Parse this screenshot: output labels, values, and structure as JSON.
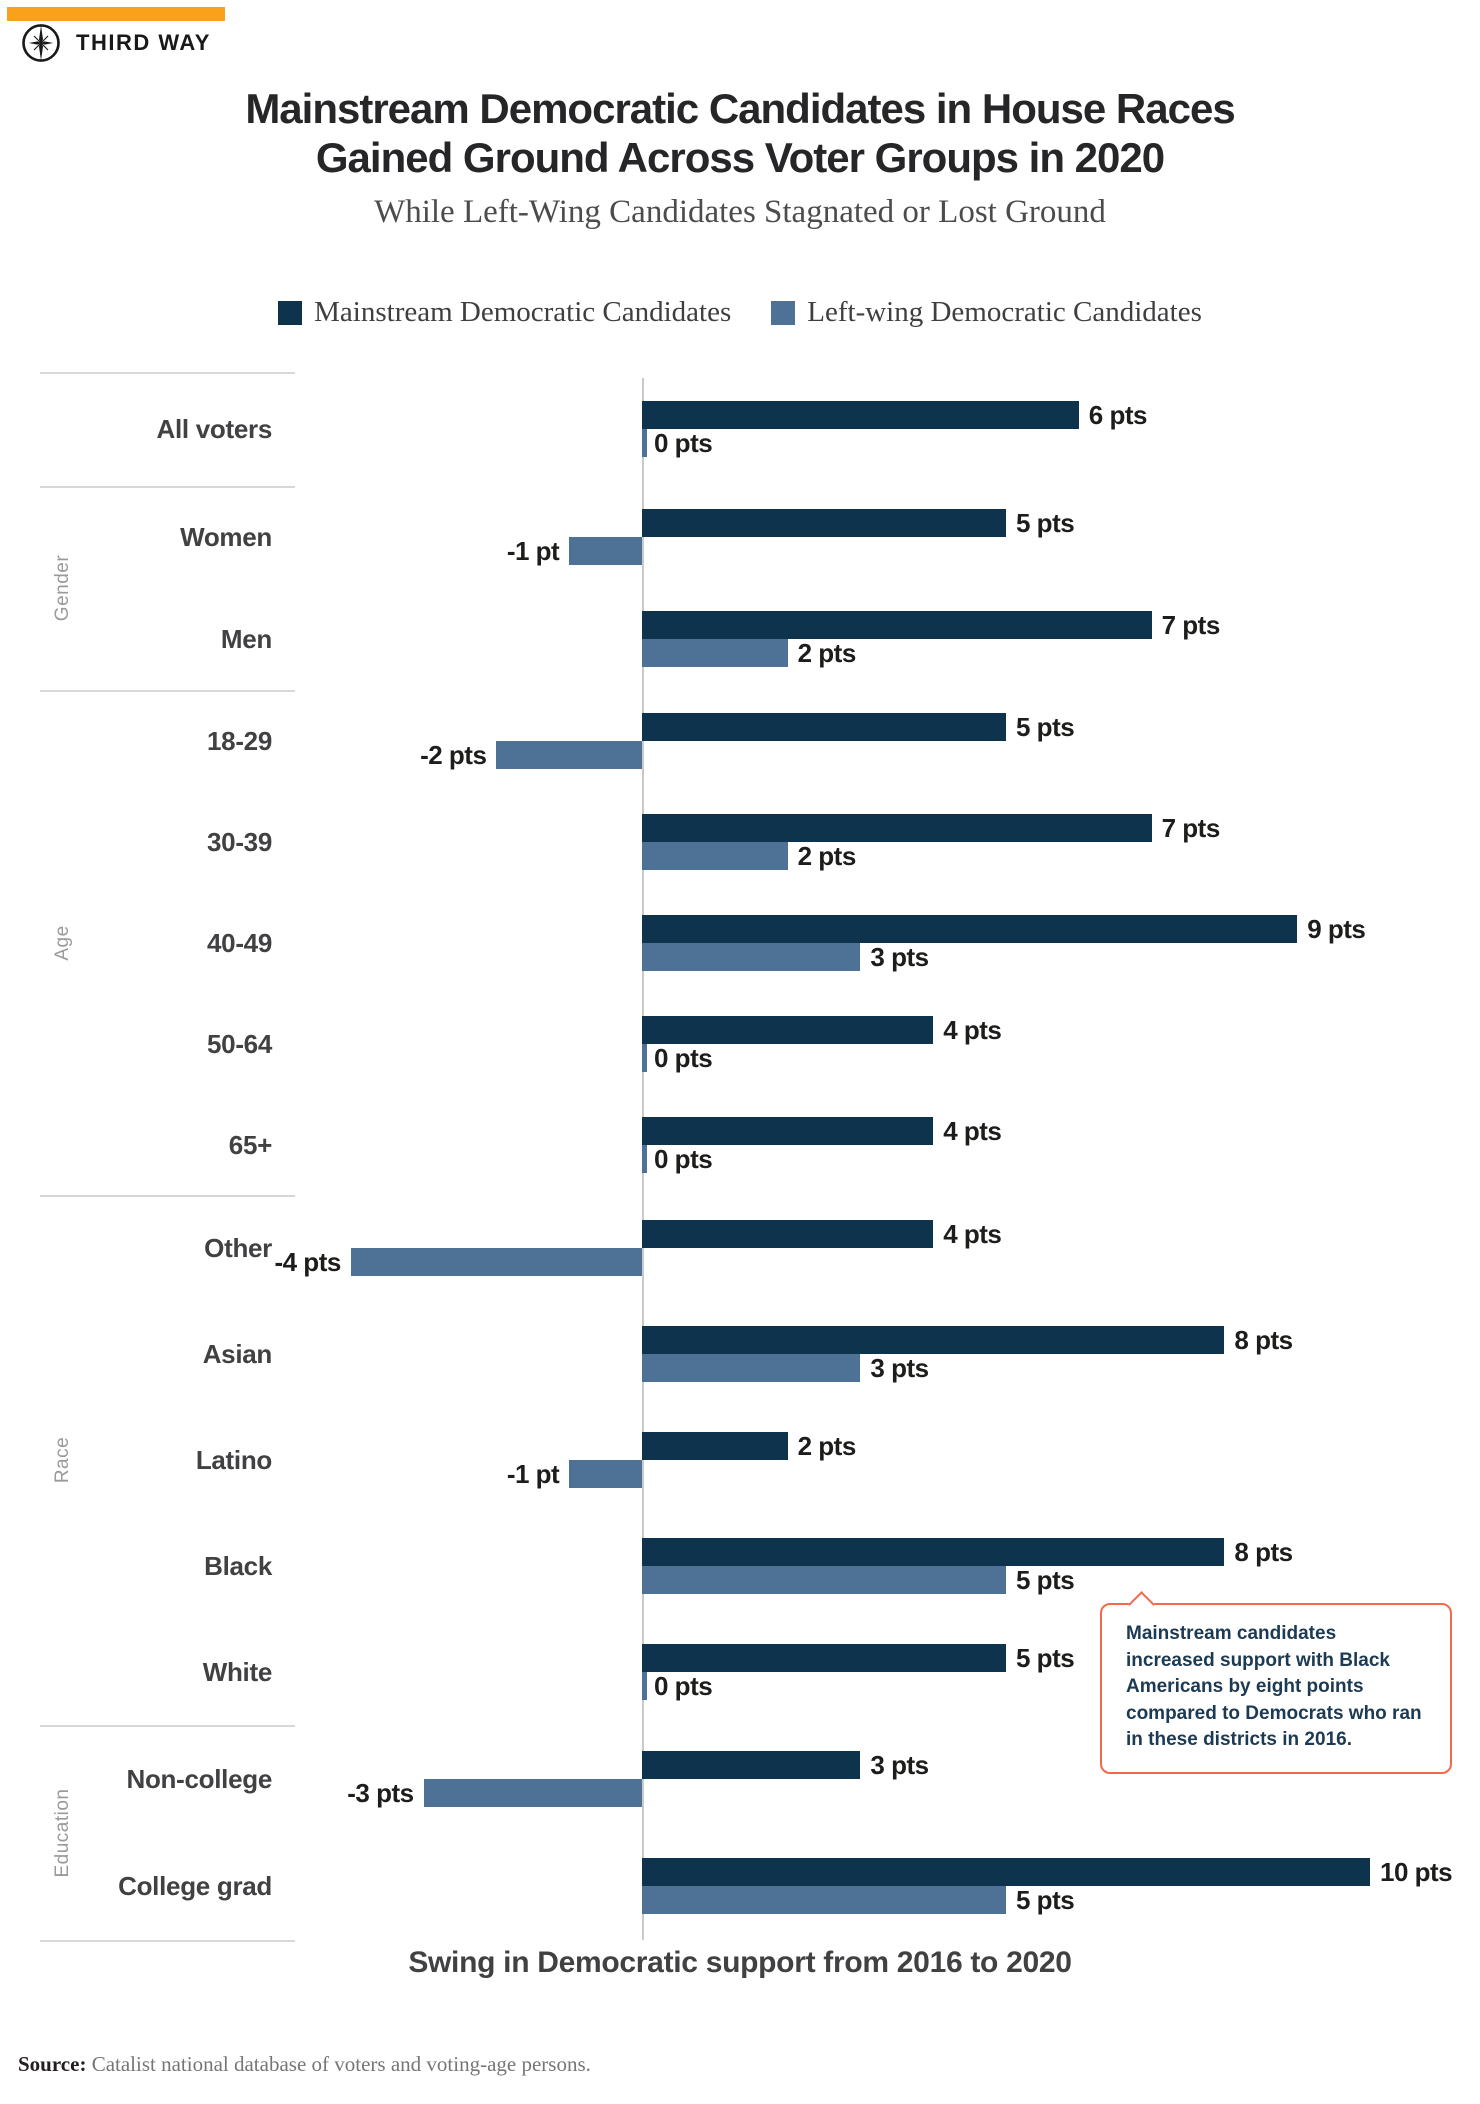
{
  "brand": {
    "name": "THIRD WAY",
    "accent_bar_color": "#f9a11b"
  },
  "title": {
    "line1": "Mainstream Democratic Candidates in House Races",
    "line2": "Gained Ground Across Voter Groups in 2020",
    "subtitle": "While Left-Wing Candidates Stagnated or Lost Ground"
  },
  "legend": [
    {
      "label": "Mainstream Democratic Candidates",
      "color": "#0e344d"
    },
    {
      "label": "Left-wing Democratic Candidates",
      "color": "#4e7296"
    }
  ],
  "chart_data": {
    "type": "bar",
    "orientation": "horizontal",
    "unit": "pts",
    "xlabel": "Swing in Democratic support from 2016 to 2020",
    "xlim": [
      -4,
      10
    ],
    "grid": false,
    "legend_position": "top",
    "series_names": [
      "Mainstream Democratic Candidates",
      "Left-wing Democratic Candidates"
    ],
    "groups": [
      {
        "name": "",
        "rows": [
          {
            "label": "All voters",
            "mainstream": 6,
            "leftwing": 0,
            "mainstream_label": "6 pts",
            "leftwing_label": "0 pts"
          }
        ]
      },
      {
        "name": "Gender",
        "rows": [
          {
            "label": "Women",
            "mainstream": 5,
            "leftwing": -1,
            "mainstream_label": "5 pts",
            "leftwing_label": "-1 pt"
          },
          {
            "label": "Men",
            "mainstream": 7,
            "leftwing": 2,
            "mainstream_label": "7 pts",
            "leftwing_label": "2 pts"
          }
        ]
      },
      {
        "name": "Age",
        "rows": [
          {
            "label": "18-29",
            "mainstream": 5,
            "leftwing": -2,
            "mainstream_label": "5 pts",
            "leftwing_label": "-2 pts"
          },
          {
            "label": "30-39",
            "mainstream": 7,
            "leftwing": 2,
            "mainstream_label": "7 pts",
            "leftwing_label": "2 pts"
          },
          {
            "label": "40-49",
            "mainstream": 9,
            "leftwing": 3,
            "mainstream_label": "9 pts",
            "leftwing_label": "3 pts"
          },
          {
            "label": "50-64",
            "mainstream": 4,
            "leftwing": 0,
            "mainstream_label": "4 pts",
            "leftwing_label": "0 pts"
          },
          {
            "label": "65+",
            "mainstream": 4,
            "leftwing": 0,
            "mainstream_label": "4 pts",
            "leftwing_label": "0 pts"
          }
        ]
      },
      {
        "name": "Race",
        "rows": [
          {
            "label": "Other",
            "mainstream": 4,
            "leftwing": -4,
            "mainstream_label": "4 pts",
            "leftwing_label": "-4 pts"
          },
          {
            "label": "Asian",
            "mainstream": 8,
            "leftwing": 3,
            "mainstream_label": "8 pts",
            "leftwing_label": "3 pts"
          },
          {
            "label": "Latino",
            "mainstream": 2,
            "leftwing": -1,
            "mainstream_label": "2 pts",
            "leftwing_label": "-1 pt"
          },
          {
            "label": "Black",
            "mainstream": 8,
            "leftwing": 5,
            "mainstream_label": "8 pts",
            "leftwing_label": "5 pts"
          },
          {
            "label": "White",
            "mainstream": 5,
            "leftwing": 0,
            "mainstream_label": "5 pts",
            "leftwing_label": "0 pts"
          }
        ]
      },
      {
        "name": "Education",
        "rows": [
          {
            "label": "Non-college",
            "mainstream": 3,
            "leftwing": -3,
            "mainstream_label": "3 pts",
            "leftwing_label": "-3 pts"
          },
          {
            "label": "College grad",
            "mainstream": 10,
            "leftwing": 5,
            "mainstream_label": "10 pts",
            "leftwing_label": "5 pts"
          }
        ]
      }
    ],
    "annotation": {
      "text": "Mainstream candidates increased support with Black Americans by eight points compared to Democrats who ran in these districts in 2016.",
      "attached_to": "Black",
      "border_color": "#f26a4b"
    }
  },
  "source": {
    "prefix": "Source:",
    "text": "Catalist national database of voters and voting-age persons."
  }
}
